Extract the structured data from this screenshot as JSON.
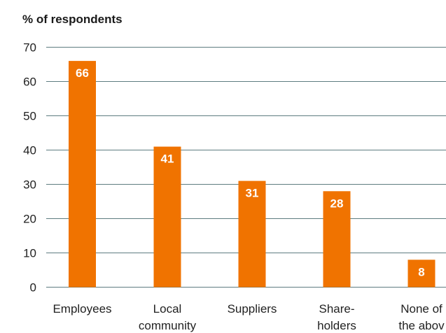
{
  "chart_data": {
    "type": "bar",
    "ylabel": "% of respondents",
    "categories": [
      [
        "Employees"
      ],
      [
        "Local",
        "community"
      ],
      [
        "Suppliers"
      ],
      [
        "Share-",
        "holders"
      ],
      [
        "None of",
        "the abov"
      ]
    ],
    "values": [
      66,
      41,
      31,
      28,
      8
    ],
    "data_labels": [
      "66",
      "41",
      "31",
      "28",
      "8"
    ],
    "yticks": [
      0,
      10,
      20,
      30,
      40,
      50,
      60,
      70
    ],
    "ylim": [
      0,
      70
    ],
    "grid": true,
    "bar_color": "#f07300",
    "grid_color": "#5e7c80"
  }
}
